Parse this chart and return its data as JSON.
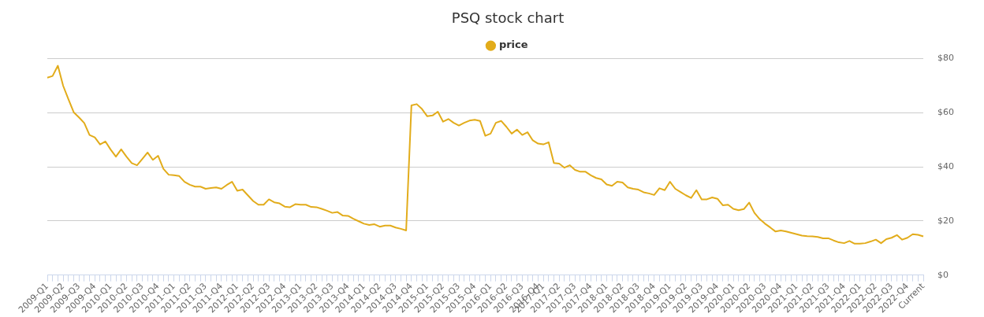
{
  "chart_data": {
    "type": "line",
    "title": "PSQ stock chart",
    "categories": [
      "2009-Q1",
      null,
      null,
      "2009-Q2",
      null,
      null,
      "2009-Q3",
      null,
      null,
      "2009-Q4",
      null,
      null,
      "2010-Q1",
      null,
      null,
      "2010-Q2",
      null,
      null,
      "2010-Q3",
      null,
      null,
      "2010-Q4",
      null,
      null,
      "2011-Q1",
      null,
      null,
      "2011-Q2",
      null,
      null,
      "2011-Q3",
      null,
      null,
      "2011-Q4",
      null,
      null,
      "2012-Q1",
      null,
      null,
      "2012-Q2",
      null,
      null,
      "2012-Q3",
      null,
      null,
      "2012-Q4",
      null,
      null,
      "2013-Q1",
      null,
      null,
      "2013-Q2",
      null,
      null,
      "2013-Q3",
      null,
      null,
      "2013-Q4",
      null,
      null,
      "2014-Q1",
      null,
      null,
      "2014-Q2",
      null,
      null,
      "2014-Q3",
      null,
      null,
      "2014-Q4",
      null,
      null,
      "2015-Q1",
      null,
      null,
      "2015-Q2",
      null,
      null,
      "2015-Q3",
      null,
      null,
      "2015-Q4",
      null,
      null,
      "2016-Q1",
      null,
      null,
      "2016-Q2",
      null,
      null,
      "2016-Q3",
      null,
      null,
      "2016-Q4",
      "2017-Q1",
      null,
      null,
      "2017-Q2",
      null,
      null,
      "2017-Q3",
      null,
      null,
      "2017-Q4",
      null,
      null,
      "2018-Q1",
      null,
      null,
      "2018-Q2",
      null,
      null,
      "2018-Q3",
      null,
      null,
      "2018-Q4",
      null,
      null,
      "2019-Q1",
      null,
      null,
      "2019-Q2",
      null,
      null,
      "2019-Q3",
      null,
      null,
      "2019-Q4",
      null,
      null,
      "2020-Q1",
      null,
      null,
      "2020-Q2",
      null,
      null,
      "2020-Q3",
      null,
      null,
      "2020-Q4",
      null,
      null,
      "2021-Q1",
      null,
      null,
      "2021-Q2",
      null,
      null,
      "2021-Q3",
      null,
      null,
      "2021-Q4",
      null,
      null,
      "2022-Q1",
      null,
      null,
      "2022-Q2",
      null,
      null,
      "2022-Q3",
      null,
      null,
      "2022-Q4",
      null,
      null,
      "Current"
    ],
    "series": [
      {
        "name": "price",
        "color": "#e2ac1b",
        "values": [
          73,
          73.6,
          77.4,
          70,
          65,
          60.2,
          58.3,
          56.2,
          51.8,
          50.9,
          48.3,
          49.4,
          46.4,
          43.8,
          46.5,
          43.8,
          41.4,
          40.6,
          42.9,
          45.3,
          42.6,
          44.1,
          39.3,
          37.1,
          36.9,
          36.6,
          34.5,
          33.4,
          32.7,
          32.7,
          31.9,
          32.2,
          32.4,
          31.9,
          33.3,
          34.5,
          31.2,
          31.6,
          29.5,
          27.4,
          26,
          26,
          28,
          26.9,
          26.5,
          25.3,
          25.1,
          26.2,
          26,
          26,
          25.2,
          25.1,
          24.5,
          23.8,
          23,
          23.3,
          22,
          21.9,
          20.8,
          19.9,
          19,
          18.5,
          18.8,
          17.9,
          18.3,
          18.3,
          17.6,
          17.1,
          16.5,
          62.7,
          63.2,
          61.4,
          58.7,
          59,
          60.4,
          56.7,
          57.7,
          56.3,
          55.3,
          56.3,
          57.1,
          57.4,
          57,
          51.5,
          52.3,
          56.3,
          57,
          54.8,
          52.3,
          53.8,
          51.8,
          52.8,
          49.8,
          48.6,
          48.3,
          49.1,
          41.4,
          41.2,
          39.7,
          40.6,
          38.9,
          38.2,
          38.2,
          36.9,
          35.9,
          35.4,
          33.5,
          33,
          34.5,
          34.2,
          32.4,
          31.9,
          31.6,
          30.6,
          30.2,
          29.6,
          32.1,
          31.4,
          34.5,
          31.9,
          30.7,
          29.5,
          28.5,
          31.4,
          28,
          28,
          28.7,
          28.2,
          25.8,
          26,
          24.5,
          24,
          24.4,
          26.8,
          23,
          20.7,
          19,
          17.6,
          16.1,
          16.5,
          16.1,
          15.6,
          15.1,
          14.6,
          14.4,
          14.3,
          14.1,
          13.6,
          13.6,
          12.8,
          12.1,
          11.8,
          12.6,
          11.6,
          11.6,
          11.8,
          12.4,
          13.1,
          11.8,
          13.3,
          13.8,
          14.8,
          13.1,
          13.8,
          15.1,
          14.9,
          14.3
        ]
      }
    ],
    "ylim": [
      0,
      80
    ],
    "yticks": [
      {
        "value": 0,
        "label": "$0"
      },
      {
        "value": 20,
        "label": "$20"
      },
      {
        "value": 40,
        "label": "$40"
      },
      {
        "value": 60,
        "label": "$60"
      },
      {
        "value": 80,
        "label": "$80"
      }
    ],
    "grid": "y",
    "legend": "top",
    "marker": "none",
    "line_style": "solid"
  }
}
